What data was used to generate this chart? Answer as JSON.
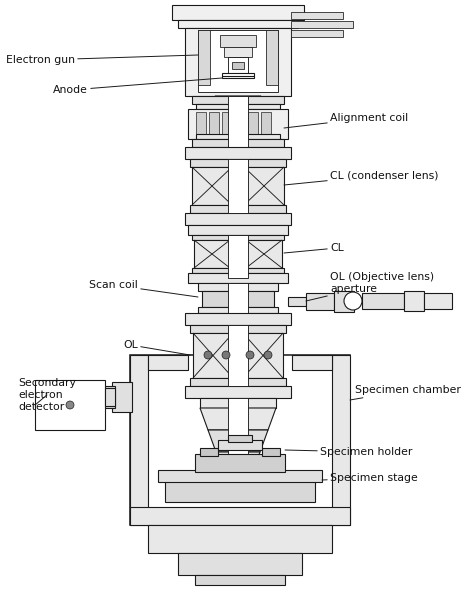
{
  "bg_color": "#ffffff",
  "line_color": "#1a1a1a",
  "lw": 0.8,
  "labels": {
    "electron_gun": "Electron gun",
    "anode": "Anode",
    "alignment_coil": "Alignment coil",
    "cl_condenser": "CL (condenser lens)",
    "cl": "CL",
    "ol_aperture": "OL (Objective lens)\naperture",
    "scan_coil": "Scan coil",
    "ol": "OL",
    "secondary_detector": "Secondary\nelectron\ndetector",
    "specimen_chamber": "Specimen chamber",
    "specimen_holder": "Specimen holder",
    "specimen_stage": "Specimen stage"
  }
}
